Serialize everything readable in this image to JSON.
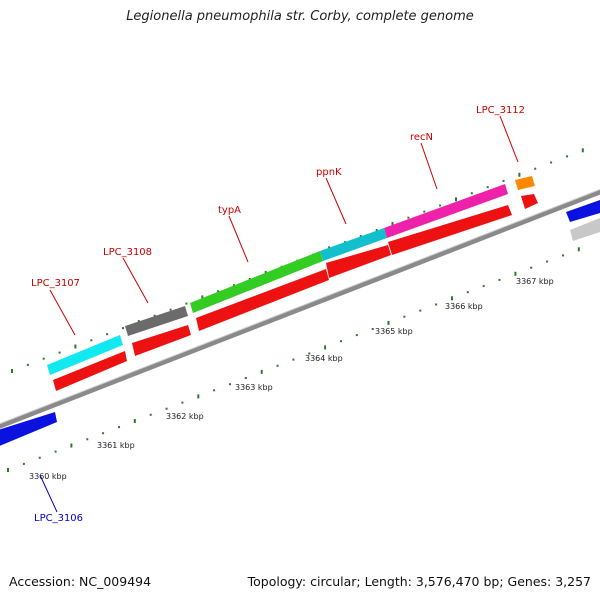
{
  "title": "Legionella pneumophila str. Corby, complete genome",
  "colors": {
    "backbone": "#8a8a8a",
    "tick": "#2a7a2a",
    "rna_arrow": "#ee1111",
    "label_forward": "#cc0000",
    "label_reverse": "#0000cc"
  },
  "ruler": {
    "unit": "kbp",
    "labels": [
      "3360 kbp",
      "3361 kbp",
      "3362 kbp",
      "3363 kbp",
      "3364 kbp",
      "3365 kbp",
      "3366 kbp",
      "3367 kbp"
    ]
  },
  "genes": [
    {
      "label": "LPC_3106",
      "strand": "reverse",
      "color": "#0b12e0"
    },
    {
      "label": "LPC_3107",
      "strand": "forward",
      "color": "#11e8f0"
    },
    {
      "label": "LPC_3108",
      "strand": "forward",
      "color": "#6b6b6b"
    },
    {
      "label": "typA",
      "strand": "forward",
      "color": "#33cc22"
    },
    {
      "label": "ppnK",
      "strand": "forward",
      "color": "#11c0cc"
    },
    {
      "label": "recN",
      "strand": "forward",
      "color": "#ee22aa"
    },
    {
      "label": "LPC_3112",
      "strand": "forward",
      "color": "#ff8800"
    },
    {
      "label": "",
      "strand": "reverse",
      "color": "#0b12e0"
    },
    {
      "label": "",
      "strand": "reverse",
      "color": "#c8c8c8"
    }
  ],
  "footer": {
    "accession": "Accession: NC_009494",
    "summary": "Topology: circular; Length: 3,576,470 bp; Genes: 3,257"
  }
}
